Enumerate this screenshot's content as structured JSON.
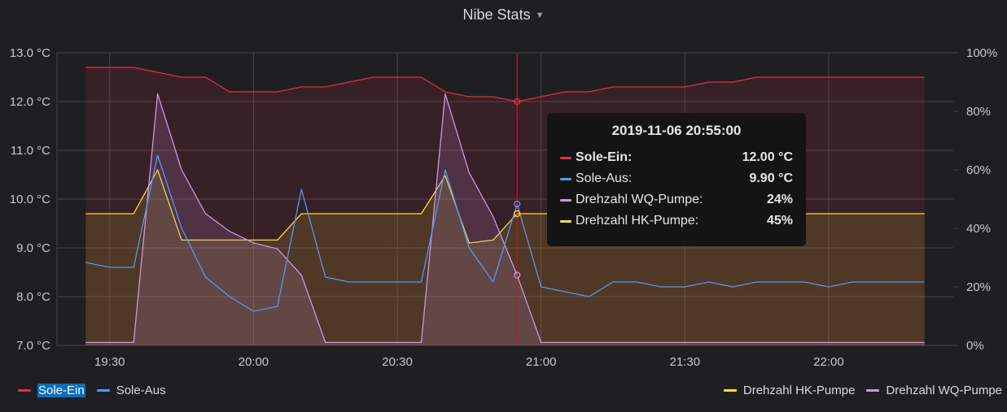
{
  "title": "Nibe Stats",
  "colors": {
    "sole_ein": "#e02f44",
    "sole_aus": "#5794f2",
    "wq": "#ca95e5",
    "hk": "#fade2a",
    "grid": "#464649",
    "cursor": "#c4162a"
  },
  "chart_data": {
    "type": "line",
    "title": "Nibe Stats",
    "x_ticks": [
      "19:30",
      "20:00",
      "20:30",
      "21:00",
      "21:30",
      "22:00"
    ],
    "y_left": {
      "ticks": [
        "7.0 °C",
        "8.0 °C",
        "9.0 °C",
        "10.0 °C",
        "11.0 °C",
        "12.0 °C",
        "13.0 °C"
      ],
      "range": [
        7,
        13
      ],
      "unit": "°C"
    },
    "y_right": {
      "ticks": [
        "0%",
        "20%",
        "40%",
        "60%",
        "80%",
        "100%"
      ],
      "range": [
        0,
        100
      ],
      "unit": "%"
    },
    "grid": true,
    "cursor_time": "20:55",
    "series": [
      {
        "name": "Sole-Ein",
        "axis": "left",
        "color": "#e02f44",
        "x": [
          "19:25",
          "19:30",
          "19:35",
          "19:40",
          "19:45",
          "19:50",
          "19:55",
          "20:00",
          "20:05",
          "20:10",
          "20:15",
          "20:20",
          "20:25",
          "20:30",
          "20:35",
          "20:40",
          "20:45",
          "20:50",
          "20:55",
          "21:00",
          "21:05",
          "21:10",
          "21:15",
          "21:20",
          "21:25",
          "21:30",
          "21:35",
          "21:40",
          "21:45",
          "21:50",
          "21:55",
          "22:00",
          "22:05",
          "22:10",
          "22:15",
          "22:20"
        ],
        "y": [
          12.7,
          12.7,
          12.7,
          12.6,
          12.5,
          12.5,
          12.2,
          12.2,
          12.2,
          12.3,
          12.3,
          12.4,
          12.5,
          12.5,
          12.5,
          12.2,
          12.1,
          12.1,
          12.0,
          12.1,
          12.2,
          12.2,
          12.3,
          12.3,
          12.3,
          12.3,
          12.4,
          12.4,
          12.5,
          12.5,
          12.5,
          12.5,
          12.5,
          12.5,
          12.5,
          12.5
        ]
      },
      {
        "name": "Sole-Aus",
        "axis": "left",
        "color": "#5794f2",
        "x": [
          "19:25",
          "19:30",
          "19:35",
          "19:40",
          "19:45",
          "19:50",
          "19:55",
          "20:00",
          "20:05",
          "20:10",
          "20:15",
          "20:20",
          "20:25",
          "20:30",
          "20:35",
          "20:40",
          "20:45",
          "20:50",
          "20:55",
          "21:00",
          "21:05",
          "21:10",
          "21:15",
          "21:20",
          "21:25",
          "21:30",
          "21:35",
          "21:40",
          "21:45",
          "21:50",
          "21:55",
          "22:00",
          "22:05",
          "22:10",
          "22:15",
          "22:20"
        ],
        "y": [
          8.7,
          8.6,
          8.6,
          10.9,
          9.4,
          8.4,
          8.0,
          7.7,
          7.8,
          10.2,
          8.4,
          8.3,
          8.3,
          8.3,
          8.3,
          10.6,
          9.0,
          8.3,
          9.9,
          8.2,
          8.1,
          8.0,
          8.3,
          8.3,
          8.2,
          8.2,
          8.3,
          8.2,
          8.3,
          8.3,
          8.3,
          8.2,
          8.3,
          8.3,
          8.3,
          8.3
        ]
      },
      {
        "name": "Drehzahl WQ-Pumpe",
        "axis": "right",
        "color": "#ca95e5",
        "x": [
          "19:25",
          "19:30",
          "19:35",
          "19:40",
          "19:45",
          "19:50",
          "19:55",
          "20:00",
          "20:05",
          "20:10",
          "20:15",
          "20:20",
          "20:25",
          "20:30",
          "20:35",
          "20:40",
          "20:45",
          "20:50",
          "20:55",
          "21:00",
          "21:05",
          "21:10",
          "21:15",
          "21:20",
          "21:25",
          "21:30",
          "21:35",
          "21:40",
          "21:45",
          "21:50",
          "21:55",
          "22:00",
          "22:05",
          "22:10",
          "22:15",
          "22:20"
        ],
        "y": [
          1,
          1,
          1,
          86,
          60,
          45,
          39,
          35,
          33,
          24,
          1,
          1,
          1,
          1,
          1,
          86,
          59,
          44,
          24,
          1,
          1,
          1,
          1,
          1,
          1,
          1,
          1,
          1,
          1,
          1,
          1,
          1,
          1,
          1,
          1,
          1
        ]
      },
      {
        "name": "Drehzahl HK-Pumpe",
        "axis": "right",
        "color": "#fade2a",
        "x": [
          "19:25",
          "19:30",
          "19:35",
          "19:40",
          "19:45",
          "19:50",
          "19:55",
          "20:00",
          "20:05",
          "20:10",
          "20:15",
          "20:20",
          "20:25",
          "20:30",
          "20:35",
          "20:40",
          "20:45",
          "20:50",
          "20:55",
          "21:00",
          "21:05",
          "21:10",
          "21:15",
          "21:20",
          "21:25",
          "21:30",
          "21:35",
          "21:40",
          "21:45",
          "21:50",
          "21:55",
          "22:00",
          "22:05",
          "22:10",
          "22:15",
          "22:20"
        ],
        "y": [
          45,
          45,
          45,
          60,
          36,
          36,
          36,
          36,
          36,
          45,
          45,
          45,
          45,
          45,
          45,
          58,
          35,
          36,
          45,
          45,
          45,
          45,
          45,
          45,
          45,
          45,
          45,
          45,
          45,
          45,
          45,
          45,
          45,
          45,
          45,
          45
        ]
      }
    ]
  },
  "tooltip": {
    "time": "2019-11-06 20:55:00",
    "rows": [
      {
        "name": "Sole-Ein:",
        "value": "12.00 °C",
        "color": "#e02f44"
      },
      {
        "name": "Sole-Aus:",
        "value": "9.90 °C",
        "color": "#5794f2"
      },
      {
        "name": "Drehzahl WQ-Pumpe:",
        "value": "24%",
        "color": "#ca95e5"
      },
      {
        "name": "Drehzahl HK-Pumpe:",
        "value": "45%",
        "color": "#fade2a"
      }
    ]
  },
  "legend": {
    "left": [
      {
        "label": "Sole-Ein",
        "color": "#e02f44"
      },
      {
        "label": "Sole-Aus",
        "color": "#5794f2"
      }
    ],
    "right": [
      {
        "label": "Drehzahl HK-Pumpe",
        "color": "#fade2a"
      },
      {
        "label": "Drehzahl WQ-Pumpe",
        "color": "#ca95e5"
      }
    ]
  }
}
